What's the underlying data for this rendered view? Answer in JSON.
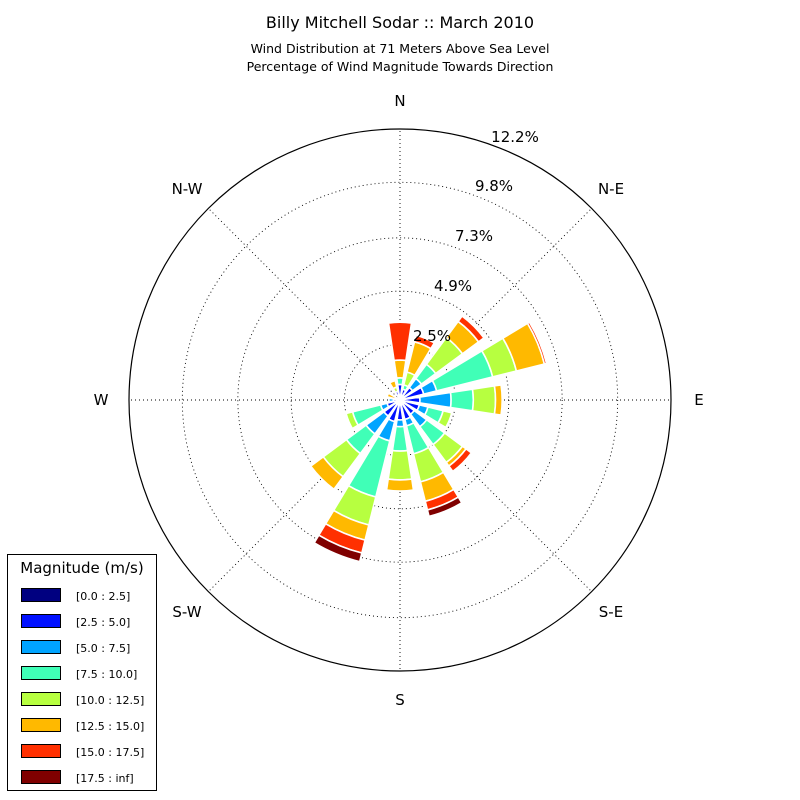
{
  "chart_data": {
    "type": "windrose",
    "title": "Billy Mitchell Sodar :: March 2010",
    "subtitle_line1": "Wind Distribution at 71 Meters Above Sea Level",
    "subtitle_line2": "Percentage of Wind Magnitude Towards Direction",
    "direction_labels": {
      "n": "N",
      "ne": "N-E",
      "e": "E",
      "se": "S-E",
      "s": "S",
      "sw": "S-W",
      "w": "W",
      "nw": "N-W"
    },
    "radial_ticks": [
      "2.5%",
      "4.9%",
      "7.3%",
      "9.8%",
      "12.2%"
    ],
    "radial_max": 12.2,
    "directions_deg": [
      0,
      22.5,
      45,
      67.5,
      90,
      112.5,
      135,
      157.5,
      180,
      202.5,
      225,
      247.5,
      270,
      292.5,
      315,
      337.5
    ],
    "bins": [
      {
        "label": "[0.0 : 2.5]",
        "color": "#000080"
      },
      {
        "label": "[2.5 : 5.0]",
        "color": "#0010ff"
      },
      {
        "label": "[5.0 : 7.5]",
        "color": "#00a4ff"
      },
      {
        "label": "[7.5 : 10.0]",
        "color": "#40ffb7"
      },
      {
        "label": "[10.0 : 12.5]",
        "color": "#b7ff40"
      },
      {
        "label": "[12.5 : 15.0]",
        "color": "#ffb900"
      },
      {
        "label": "[15.0 : 17.5]",
        "color": "#ff3000"
      },
      {
        "label": "[17.5 : inf]",
        "color": "#800000"
      }
    ],
    "cumulative_percent": [
      [
        0.1,
        0.7,
        0.7,
        1.0,
        1.0,
        1.8,
        3.5,
        3.3
      ],
      [
        0.1,
        0.5,
        0.5,
        0.7,
        1.3,
        2.7,
        3.0,
        3.0
      ],
      [
        0.1,
        0.7,
        1.2,
        2.0,
        3.5,
        4.4,
        4.7,
        4.7
      ],
      [
        0.1,
        1.1,
        1.7,
        4.3,
        5.4,
        6.7,
        6.8,
        6.8
      ],
      [
        0.1,
        0.9,
        2.3,
        3.3,
        4.3,
        4.6,
        4.6,
        4.6
      ],
      [
        0.1,
        0.9,
        1.3,
        2.0,
        2.4,
        2.4,
        2.4,
        2.4
      ],
      [
        0.1,
        0.8,
        1.5,
        2.5,
        3.5,
        3.7,
        4.0,
        4.0
      ],
      [
        0.1,
        0.9,
        1.2,
        2.5,
        3.8,
        4.7,
        5.1,
        5.4
      ],
      [
        0.1,
        0.9,
        1.2,
        2.3,
        3.6,
        4.1,
        4.1,
        4.1
      ],
      [
        0.1,
        1.0,
        1.9,
        4.5,
        5.8,
        6.5,
        7.1,
        7.5
      ],
      [
        0.1,
        0.9,
        1.9,
        3.0,
        4.3,
        5.0,
        5.0,
        5.0
      ],
      [
        0.1,
        0.6,
        0.9,
        2.2,
        2.5,
        2.5,
        2.5,
        2.5
      ],
      [
        0.1,
        0.3,
        0.5,
        0.5,
        0.5,
        0.5,
        0.5,
        0.5
      ],
      [
        0.1,
        0.1,
        0.1,
        0.1,
        0.2,
        0.6,
        0.6,
        0.6
      ],
      [
        0.1,
        0.1,
        0.1,
        0.1,
        0.1,
        0.1,
        0.1,
        0.1
      ],
      [
        0.1,
        0.4,
        0.4,
        0.4,
        0.6,
        0.9,
        0.9,
        0.9
      ]
    ]
  },
  "legend": {
    "title": "Magnitude (m/s)"
  }
}
